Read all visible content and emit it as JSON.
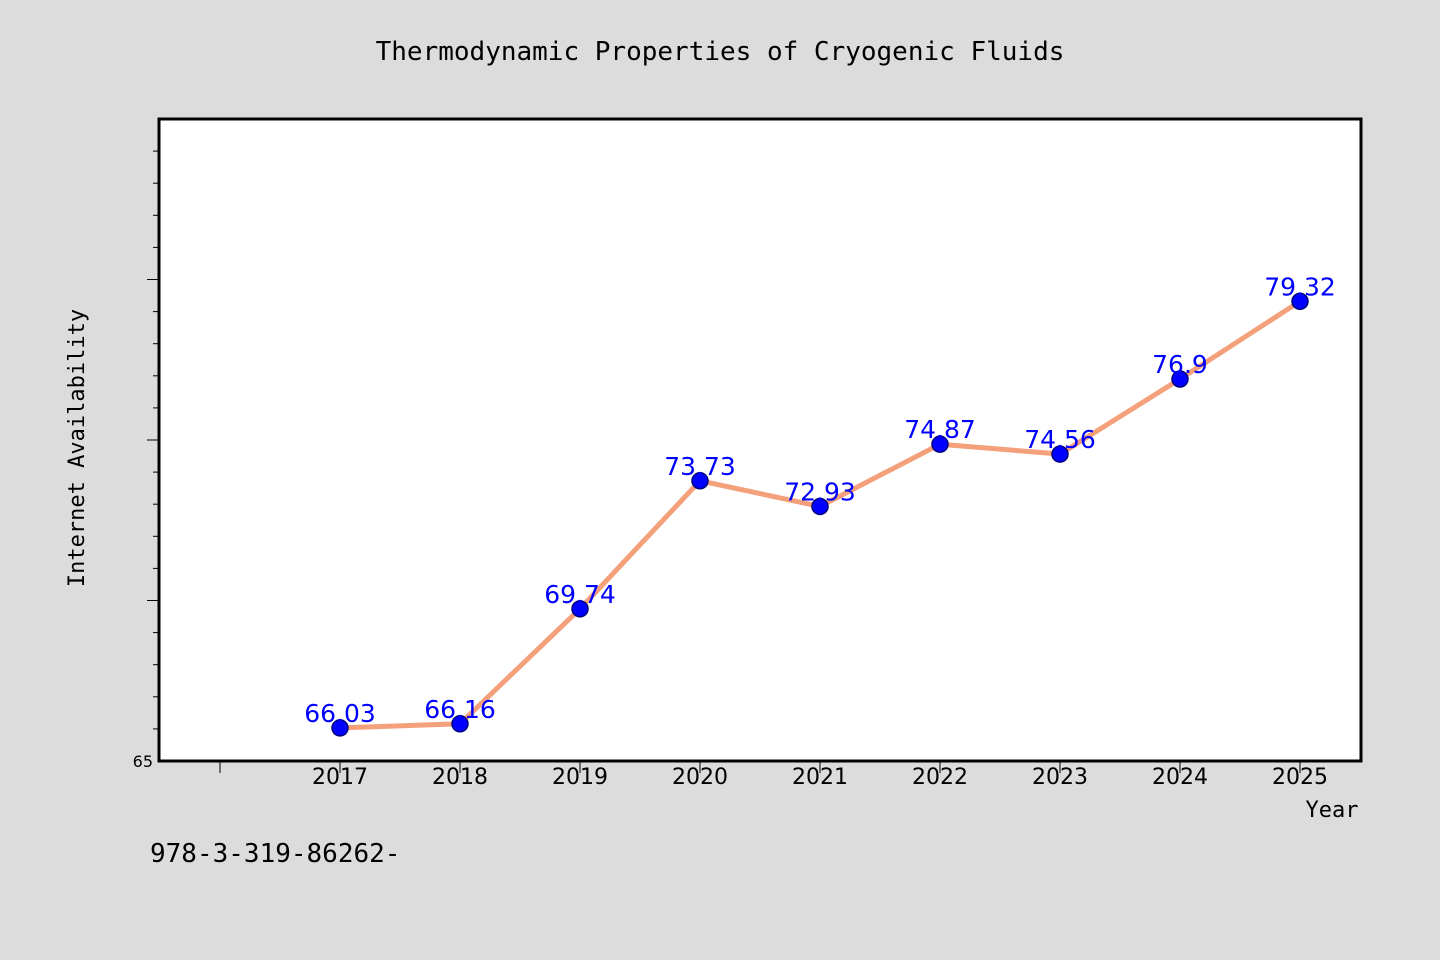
{
  "chart_data": {
    "type": "line",
    "title": "Thermodynamic Properties of Cryogenic Fluids",
    "xlabel": "Year",
    "ylabel": "Internet Availability",
    "categories": [
      "2017",
      "2018",
      "2019",
      "2020",
      "2021",
      "2022",
      "2023",
      "2024",
      "2025"
    ],
    "series": [
      {
        "values": [
          66.03,
          66.16,
          69.74,
          73.73,
          72.93,
          74.87,
          74.56,
          76.9,
          79.32
        ],
        "labels": [
          "66.03",
          "66.16",
          "69.74",
          "73.73",
          "72.93",
          "74.87",
          "74.56",
          "76.9",
          "79.32"
        ]
      }
    ],
    "ylim": [
      65,
      85
    ],
    "yticks_labeled": [
      "65"
    ],
    "grid": false,
    "legend": "none",
    "colors": {
      "line": "#f4a07a",
      "marker": "#0000ff",
      "data_label": "#0000ff",
      "plot_background": "#ffffff",
      "figure_background": "#dcdcdc"
    }
  },
  "footnote": "978-3-319-86262-"
}
